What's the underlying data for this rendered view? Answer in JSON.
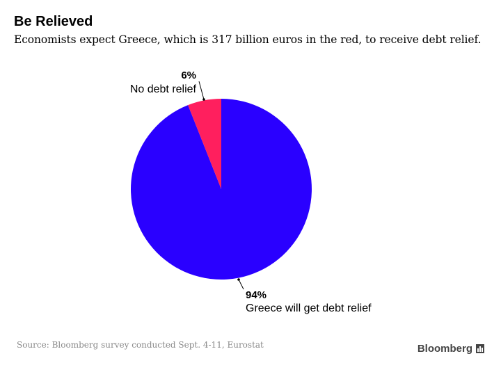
{
  "header": {
    "title": "Be Relieved",
    "subtitle": "Economists expect Greece, which is 317 billion euros in the red, to receive debt relief."
  },
  "chart_data": {
    "type": "pie",
    "slices": [
      {
        "label": "Greece will get debt relief",
        "value": 94,
        "value_label": "94%",
        "color": "#2a00ff"
      },
      {
        "label": "No debt relief",
        "value": 6,
        "value_label": "6%",
        "color": "#ff1f5e"
      }
    ]
  },
  "footer": {
    "source": "Source: Bloomberg survey conducted Sept. 4-11, Eurostat",
    "brand": "Bloomberg",
    "brand_icon": "bloomberg-bars-icon"
  }
}
